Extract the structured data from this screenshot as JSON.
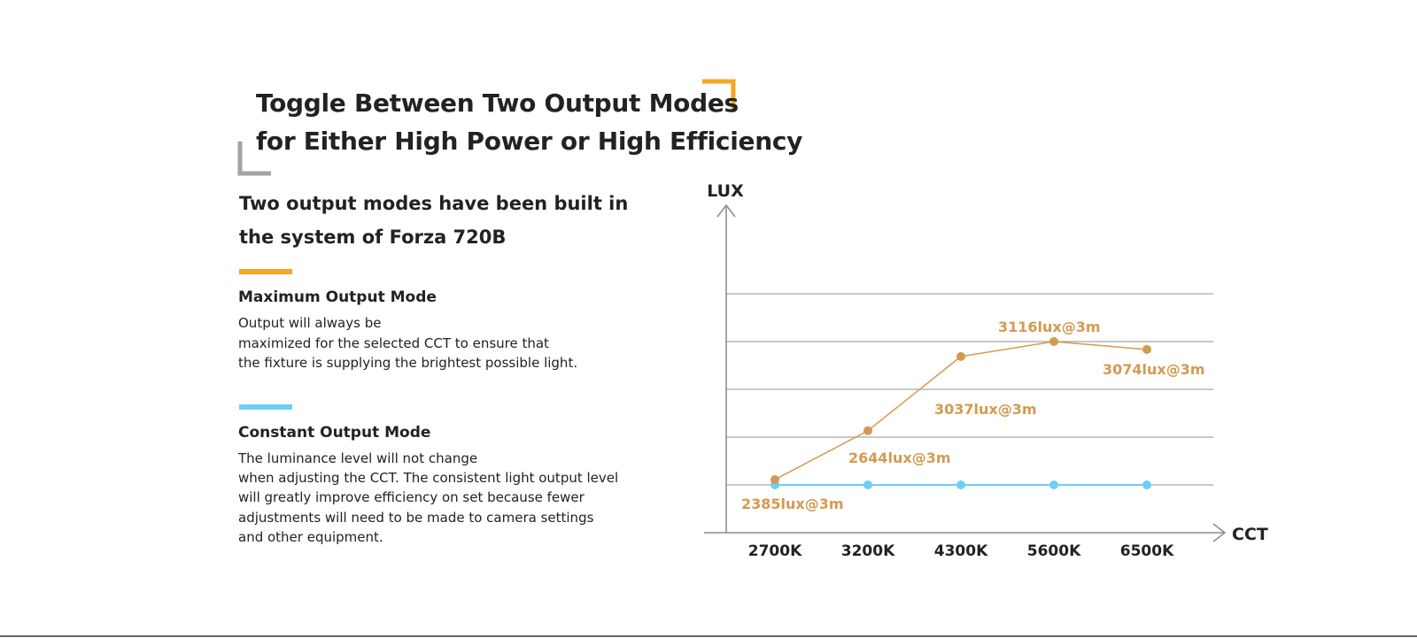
{
  "header": {
    "title_line1": "Toggle Between Two Output Modes",
    "title_line2": "for Either High Power or High Efficiency"
  },
  "intro": {
    "line1": "Two output modes have been built in",
    "line2": "the system of Forza 720B"
  },
  "modes": [
    {
      "title": "Maximum Output Mode",
      "color": "#F5A623",
      "lines": [
        "Output will always be",
        "maximized for the selected CCT to ensure that",
        "the fixture is supplying the brightest possible light."
      ]
    },
    {
      "title": "Constant Output Mode",
      "color": "#6CCFF6",
      "lines": [
        "The luminance level will not change",
        "when adjusting the CCT. The consistent light output level",
        "will greatly improve efficiency on set because fewer",
        "adjustments will need to be made to camera settings",
        "and other equipment."
      ]
    }
  ],
  "colors": {
    "accent_orange": "#F5A623",
    "bracket_gray": "#A3A3A3",
    "series_max": "#D49A50",
    "series_constant": "#6CCFF6",
    "grid": "#B5B5B5",
    "axis": "#8A8A8A"
  },
  "chart_data": {
    "type": "line",
    "xlabel": "CCT",
    "ylabel": "LUX",
    "categories": [
      "2700K",
      "3200K",
      "4300K",
      "5600K",
      "6500K"
    ],
    "grid": true,
    "series": [
      {
        "key": "maximum",
        "values": [
          2385,
          2644,
          3037,
          3116,
          3074
        ],
        "labels": [
          "2385lux@3m",
          "2644lux@3m",
          "3037lux@3m",
          "3116lux@3m",
          "3074lux@3m"
        ]
      },
      {
        "key": "constant",
        "values": [
          2385,
          2385,
          2385,
          2385,
          2385
        ],
        "labels": []
      }
    ]
  }
}
